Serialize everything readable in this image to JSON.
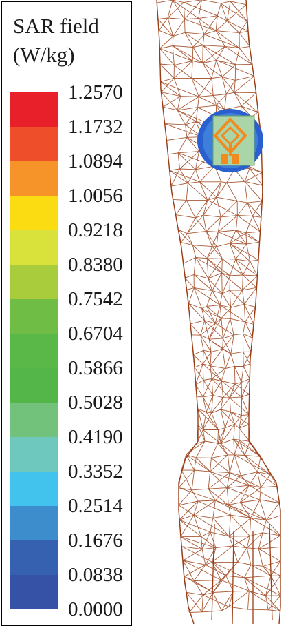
{
  "legend": {
    "title_line1": "SAR field",
    "title_line2": "(W/kg)",
    "levels": [
      {
        "label": "1.2570",
        "color": "#e8202a"
      },
      {
        "label": "1.1732",
        "color": "#ef4e2a"
      },
      {
        "label": "1.0894",
        "color": "#f6942a"
      },
      {
        "label": "1.0056",
        "color": "#fbdc12"
      },
      {
        "label": "0.9218",
        "color": "#d9e23b"
      },
      {
        "label": "0.8380",
        "color": "#a8cc3c"
      },
      {
        "label": "0.7542",
        "color": "#6fbd45"
      },
      {
        "label": "0.6704",
        "color": "#59b847"
      },
      {
        "label": "0.5866",
        "color": "#54b648"
      },
      {
        "label": "0.5028",
        "color": "#73c27b"
      },
      {
        "label": "0.4190",
        "color": "#6fc8bd"
      },
      {
        "label": "0.3352",
        "color": "#41c3ee"
      },
      {
        "label": "0.2514",
        "color": "#3d8ccc"
      },
      {
        "label": "0.1676",
        "color": "#3661b0"
      },
      {
        "label": "0.0838",
        "color": "#3552a6"
      },
      {
        "label": "0.0000",
        "color": ""
      }
    ]
  },
  "colors": {
    "mesh": "#9a3d14",
    "patch_bg": "#a9d5a9",
    "antenna": "#f18a1f",
    "sar_hotspot": "#2a5fd0"
  }
}
